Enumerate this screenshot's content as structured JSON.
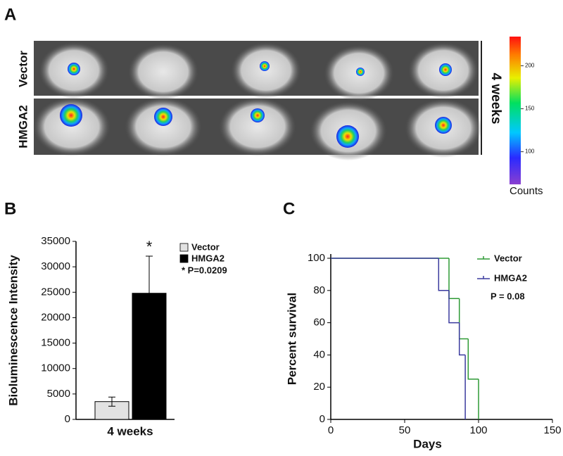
{
  "panel_a": {
    "label": "A",
    "rows": [
      "Vector",
      "HMGA2"
    ],
    "timepoint": "4 weeks",
    "colorbar": {
      "title": "Counts",
      "lim": [
        62,
        234
      ],
      "ticks": [
        100,
        150,
        200
      ]
    }
  },
  "chart_data": [
    {
      "type": "bar",
      "panel_label": "B",
      "ylabel": "Bioluminescence Intensity",
      "categories": [
        "4 weeks"
      ],
      "series": [
        {
          "name": "Vector",
          "color": "#e2e2e2",
          "values": [
            3500
          ],
          "errors": [
            900
          ]
        },
        {
          "name": "HMGA2",
          "color": "#000000",
          "values": [
            24800
          ],
          "errors": [
            7300
          ]
        }
      ],
      "ylim": [
        0,
        35000
      ],
      "yticks": [
        0,
        5000,
        10000,
        15000,
        20000,
        25000,
        30000,
        35000
      ],
      "significance": "*",
      "annotation": "* P=0.0209"
    },
    {
      "type": "step",
      "panel_label": "C",
      "xlabel": "Days",
      "ylabel": "Percent survival",
      "series": [
        {
          "name": "Vector",
          "color": "#2e9a35",
          "x": [
            0,
            80,
            87,
            93,
            100
          ],
          "values": [
            100,
            75,
            50,
            25,
            0
          ]
        },
        {
          "name": "HMGA2",
          "color": "#3a3a9e",
          "x": [
            0,
            73,
            80,
            87,
            91
          ],
          "values": [
            100,
            80,
            60,
            40,
            0
          ]
        }
      ],
      "xlim": [
        0,
        150
      ],
      "xticks": [
        0,
        50,
        100,
        150
      ],
      "ylim": [
        0,
        100
      ],
      "yticks": [
        0,
        20,
        40,
        60,
        80,
        100
      ],
      "annotation": "P = 0.08"
    }
  ]
}
